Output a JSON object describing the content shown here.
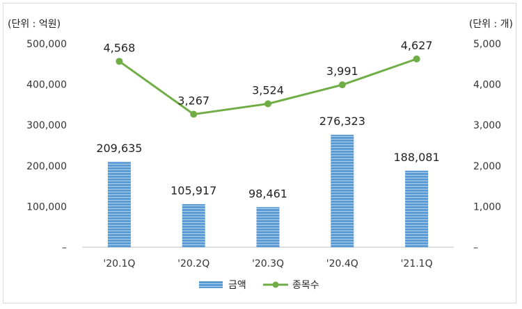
{
  "chart_data": {
    "type": "bar+line",
    "left_unit": "(단위 : 억원)",
    "right_unit": "(단위 : 개)",
    "categories": [
      "'20.1Q",
      "'20.2Q",
      "'20.3Q",
      "'20.4Q",
      "'21.1Q"
    ],
    "left_axis": {
      "ylim": [
        0,
        500000
      ],
      "tick_labels": [
        "–",
        "100,000",
        "200,000",
        "300,000",
        "400,000",
        "500,000"
      ]
    },
    "right_axis": {
      "ylim": [
        0,
        5000
      ],
      "tick_labels": [
        "–",
        "1,000",
        "2,000",
        "3,000",
        "4,000",
        "5,000"
      ]
    },
    "series": [
      {
        "name": "금액",
        "type": "bar",
        "axis": "left",
        "values": [
          209635,
          105917,
          98461,
          276323,
          188081
        ],
        "labels": [
          "209,635",
          "105,917",
          "98,461",
          "276,323",
          "188,081"
        ],
        "color": "#5b9bd5"
      },
      {
        "name": "종목수",
        "type": "line",
        "axis": "right",
        "values": [
          4568,
          3267,
          3524,
          3991,
          4627
        ],
        "labels": [
          "4,568",
          "3,267",
          "3,524",
          "3,991",
          "4,627"
        ],
        "color": "#70ad47"
      }
    ],
    "grid": false,
    "legend_position": "bottom-center"
  }
}
